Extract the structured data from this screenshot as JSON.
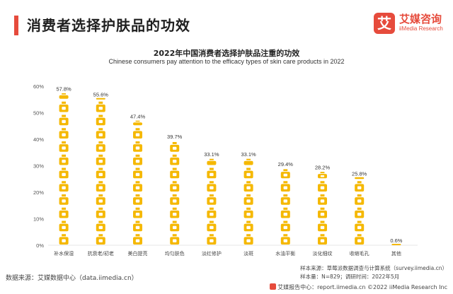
{
  "header": {
    "title": "消费者选择护肤品的功效",
    "accent_color": "#e64b3c"
  },
  "logo": {
    "mark": "艾",
    "name_cn": "艾媒咨询",
    "name_en": "iiMedia Research"
  },
  "chart_data": {
    "type": "bar",
    "title": "2022年中国消费者选择护肤品注重的功效",
    "subtitle": "Chinese consumers pay attention to the efficacy types of skin care products in 2022",
    "categories": [
      "补水保湿",
      "抗衰老/初老",
      "美白提亮",
      "均匀肤色",
      "淡红修护",
      "淡斑",
      "水油平衡",
      "淡化细纹",
      "收缩毛孔",
      "其他"
    ],
    "values": [
      57.8,
      55.6,
      47.4,
      39.7,
      33.1,
      33.1,
      29.4,
      28.2,
      25.8,
      0.6
    ],
    "value_labels": [
      "57.8%",
      "55.6%",
      "47.4%",
      "39.7%",
      "33.1%",
      "33.1%",
      "29.4%",
      "28.2%",
      "25.8%",
      "0.6%"
    ],
    "ylim": [
      0,
      60
    ],
    "yticks": [
      0,
      10,
      20,
      30,
      40,
      50,
      60
    ],
    "ytick_labels": [
      "0%",
      "10%",
      "20%",
      "30%",
      "40%",
      "50%",
      "60%"
    ],
    "icon": "bottle-icon",
    "color": "#f5b800",
    "grid": false
  },
  "footer": {
    "source": "数据来源：艾媒数据中心（data.iimedia.cn）",
    "sample_source": "样本来源：草莓派数据调查与计算系统（survey.iimedia.cn）",
    "sample_info": "样本量：N=829；调研时间：2022年5月",
    "report_line": "艾媒报告中心：report.iimedia.cn  ©2022  iiMedia Research  Inc"
  }
}
